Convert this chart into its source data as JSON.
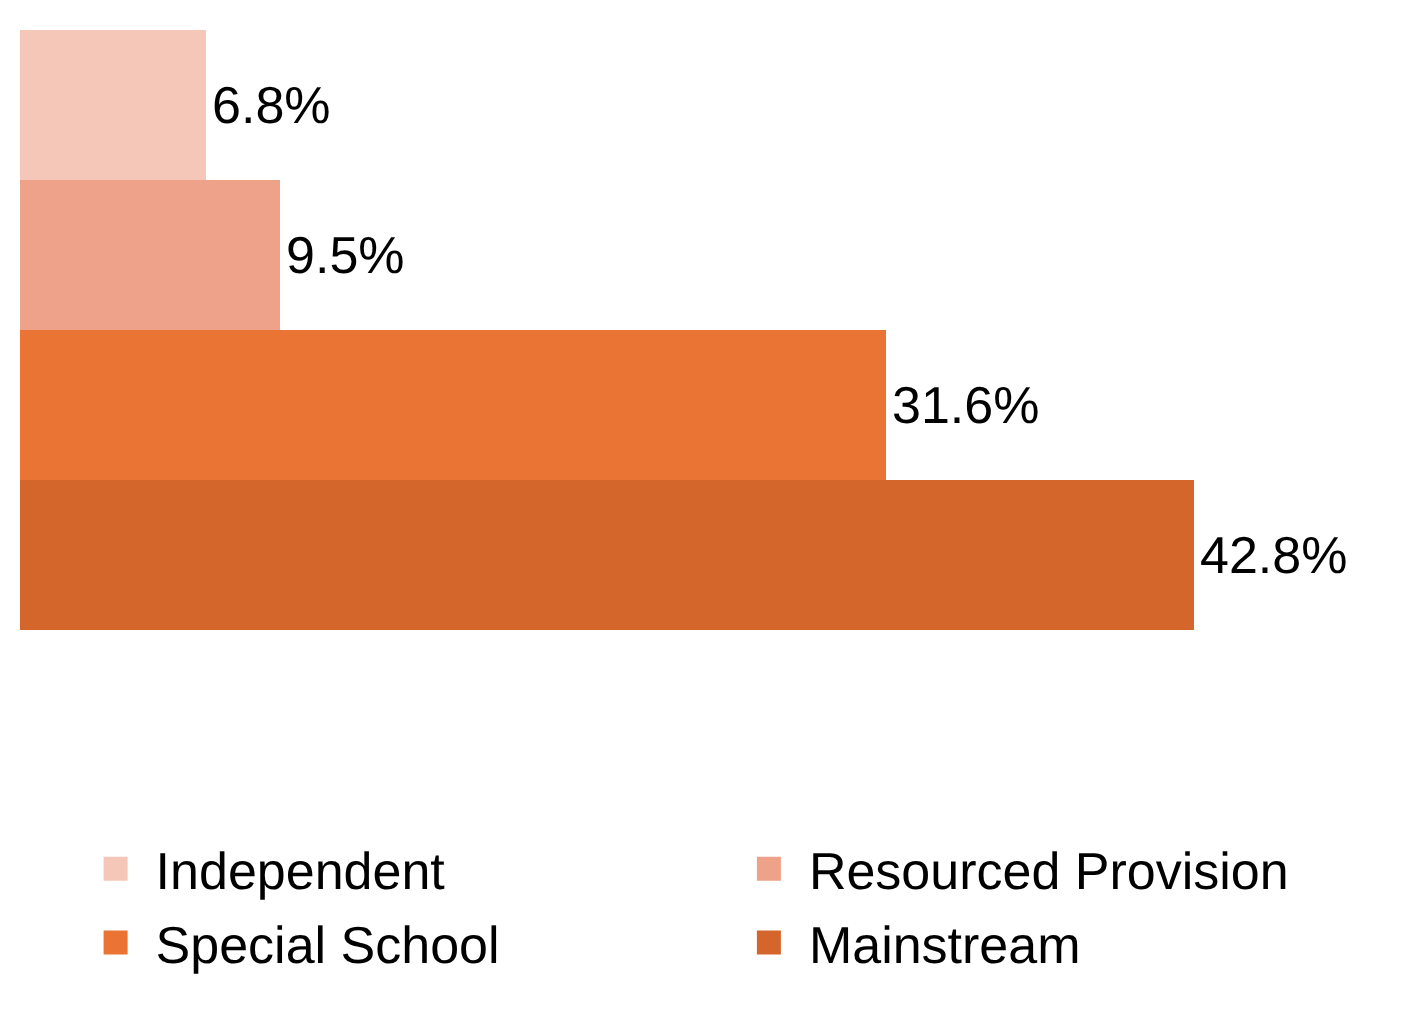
{
  "chart_data": {
    "type": "bar",
    "orientation": "horizontal",
    "stacked": true,
    "categories": [
      null,
      null,
      null,
      null
    ],
    "series": [
      {
        "name": "Independent",
        "color": "#f4c7b8",
        "values": [
          6.8,
          null,
          null,
          null
        ],
        "value_labels": [
          "6.8%",
          null,
          null,
          null
        ]
      },
      {
        "name": "Resourced Provision",
        "color": "#efa28a",
        "values": [
          null,
          9.5,
          null,
          null
        ],
        "value_labels": [
          null,
          "9.5%",
          null,
          null
        ]
      },
      {
        "name": "Special School",
        "color": "#e97433",
        "values": [
          null,
          null,
          31.6,
          null
        ],
        "value_labels": [
          null,
          null,
          "31.6%",
          null
        ]
      },
      {
        "name": "Mainstream",
        "color": "#d4662c",
        "values": [
          null,
          null,
          null,
          42.8
        ],
        "value_labels": [
          null,
          null,
          null,
          "42.8%"
        ]
      }
    ],
    "legend": "bottom",
    "tick_labels": false
  }
}
